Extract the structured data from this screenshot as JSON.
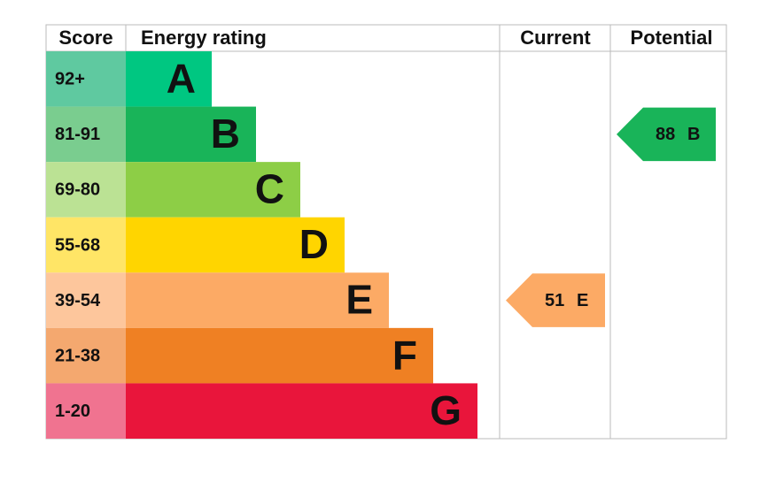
{
  "header": {
    "score": "Score",
    "rating": "Energy rating",
    "current": "Current",
    "potential": "Potential"
  },
  "bands": [
    {
      "score": "92+",
      "letter": "A",
      "color": "#00c781",
      "score_color": "#5fc9a0"
    },
    {
      "score": "81-91",
      "letter": "B",
      "color": "#19b459",
      "score_color": "#7acd8f"
    },
    {
      "score": "69-80",
      "letter": "C",
      "color": "#8dce46",
      "score_color": "#bbe294"
    },
    {
      "score": "55-68",
      "letter": "D",
      "color": "#ffd500",
      "score_color": "#ffe566"
    },
    {
      "score": "39-54",
      "letter": "E",
      "color": "#fcaa65",
      "score_color": "#fdc69c"
    },
    {
      "score": "21-38",
      "letter": "F",
      "color": "#ef8023",
      "score_color": "#f4a86f"
    },
    {
      "score": "1-20",
      "letter": "G",
      "color": "#e9153b",
      "score_color": "#f07390"
    }
  ],
  "current": {
    "value": 51,
    "label": "E"
  },
  "potential": {
    "value": 88,
    "label": "B"
  }
}
